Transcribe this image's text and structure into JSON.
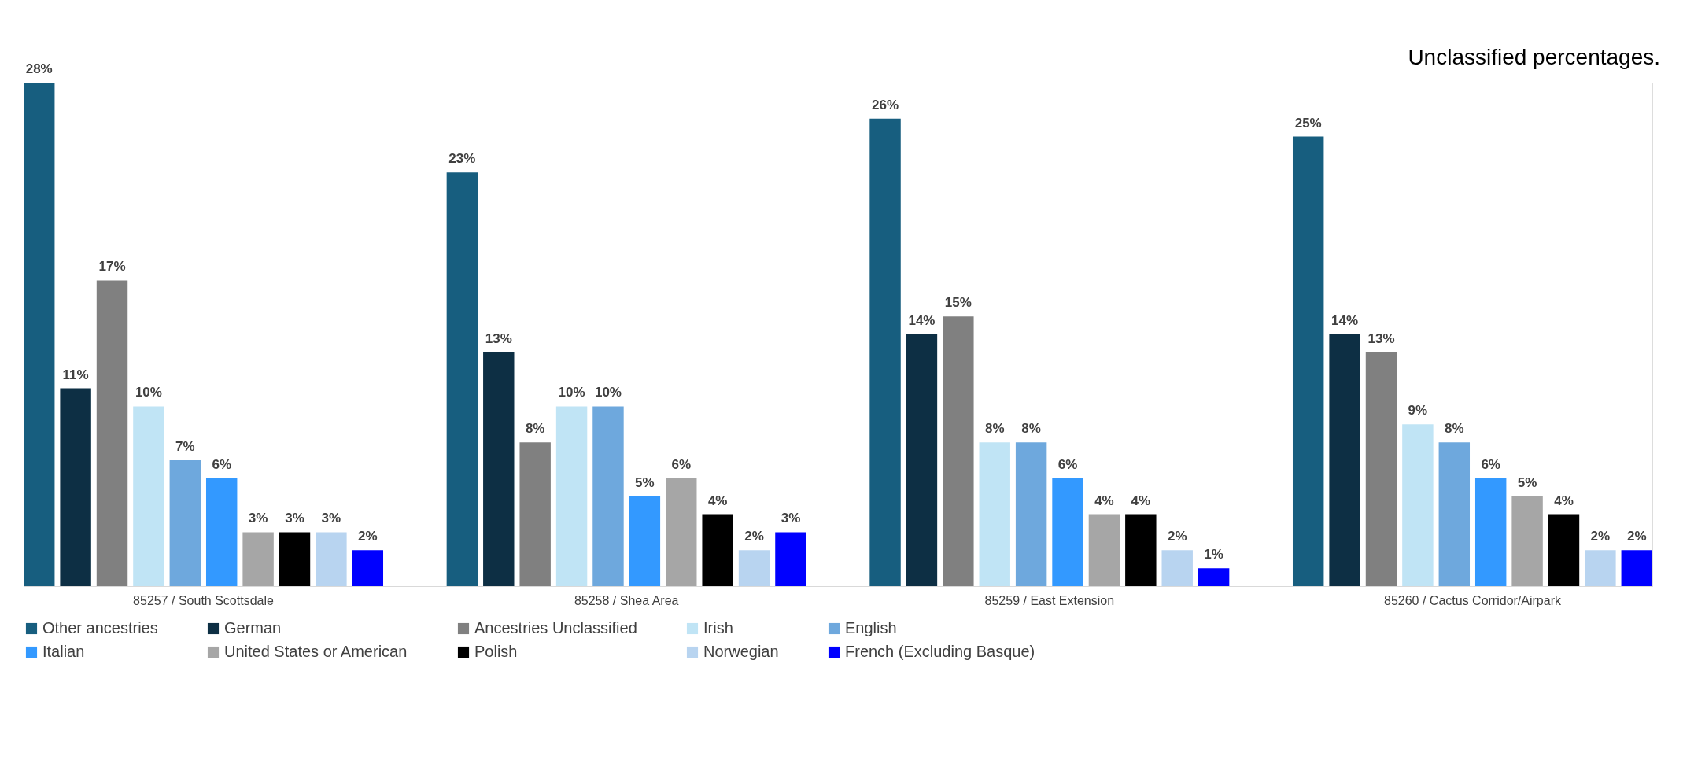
{
  "chart_data": {
    "type": "bar",
    "annotations": [
      "Unclassified percentages."
    ],
    "categories": [
      "85257 / South Scottsdale",
      "85258 / Shea Area",
      "85259 / East Extension",
      "85260 / Cactus Corridor/Airpark"
    ],
    "legend": "bottom",
    "grid": false,
    "series": [
      {
        "name": "Other ancestries",
        "color": "#175e7f",
        "values": [
          28,
          23,
          26,
          25
        ],
        "value_labels": [
          "28%",
          "23%",
          "26%",
          "25%"
        ]
      },
      {
        "name": "German",
        "color": "#0d2f44",
        "values": [
          11,
          13,
          14,
          14
        ],
        "value_labels": [
          "11%",
          "13%",
          "14%",
          "14%"
        ]
      },
      {
        "name": "Ancestries Unclassified",
        "color": "#808080",
        "values": [
          17,
          8,
          15,
          13
        ],
        "value_labels": [
          "17%",
          "8%",
          "15%",
          "13%"
        ]
      },
      {
        "name": "Irish",
        "color": "#c0e4f5",
        "values": [
          10,
          10,
          8,
          9
        ],
        "value_labels": [
          "10%",
          "10%",
          "8%",
          "9%"
        ]
      },
      {
        "name": "English",
        "color": "#6ea8dd",
        "values": [
          7,
          10,
          8,
          8
        ],
        "value_labels": [
          "7%",
          "10%",
          "8%",
          "8%"
        ]
      },
      {
        "name": "Italian",
        "color": "#3399ff",
        "values": [
          6,
          5,
          6,
          6
        ],
        "value_labels": [
          "6%",
          "5%",
          "6%",
          "6%"
        ]
      },
      {
        "name": "United States or American",
        "color": "#a6a6a6",
        "values": [
          3,
          6,
          4,
          5
        ],
        "value_labels": [
          "3%",
          "6%",
          "4%",
          "5%"
        ]
      },
      {
        "name": "Polish",
        "color": "#000000",
        "values": [
          3,
          4,
          4,
          4
        ],
        "value_labels": [
          "3%",
          "4%",
          "4%",
          "4%"
        ]
      },
      {
        "name": "Norwegian",
        "color": "#b8d4f0",
        "values": [
          3,
          2,
          2,
          2
        ],
        "value_labels": [
          "3%",
          "2%",
          "2%",
          "2%"
        ]
      },
      {
        "name": "French (Excluding Basque)",
        "color": "#0000ff",
        "values": [
          2,
          3,
          1,
          2
        ],
        "value_labels": [
          "2%",
          "3%",
          "1%",
          "2%"
        ]
      }
    ]
  }
}
